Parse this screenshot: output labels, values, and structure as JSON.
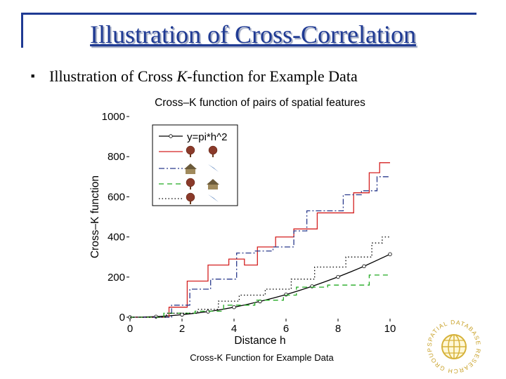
{
  "slide": {
    "title": "Illustration of Cross-Correlation",
    "bullet_icon": "square-bullet",
    "bullet_prefix": "Illustration of Cross ",
    "bullet_italic": "K",
    "bullet_suffix": "-function for Example Data",
    "caption": "Cross-K Function for Example Data",
    "logo_text": "SPATIAL DATABASE RESEARCH GROUP",
    "logo_icon": "globe-icon",
    "accent_color": "#1f3a93"
  },
  "chart_data": {
    "type": "line",
    "title": "Cross–K function of pairs of spatial features",
    "xlabel": "Distance h",
    "ylabel": "Cross–K function",
    "xlim": [
      0,
      10
    ],
    "ylim": [
      0,
      1000
    ],
    "xticks": [
      0,
      2,
      4,
      6,
      8,
      10
    ],
    "yticks": [
      0,
      200,
      400,
      600,
      800,
      1000
    ],
    "legend_position": "top-left",
    "series": [
      {
        "name": "y=pi*h^2",
        "legend_icons": [],
        "color": "#000000",
        "style": "solid-circles",
        "x": [
          0,
          0.5,
          1,
          1.5,
          2,
          2.5,
          3,
          3.5,
          4,
          4.5,
          5,
          5.5,
          6,
          6.5,
          7,
          7.5,
          8,
          8.5,
          9,
          9.5,
          10
        ],
        "values": [
          0,
          1,
          3,
          7,
          13,
          20,
          28,
          38,
          50,
          64,
          79,
          95,
          113,
          133,
          154,
          177,
          201,
          227,
          254,
          284,
          314
        ]
      },
      {
        "name": "",
        "legend_icons": [
          "tree-icon",
          "tree-icon"
        ],
        "color": "#d42020",
        "style": "solid",
        "x": [
          0,
          1.5,
          1.5,
          2.2,
          2.2,
          3,
          3,
          3.8,
          3.8,
          4.4,
          4.4,
          4.9,
          4.9,
          5.6,
          5.6,
          6.3,
          6.3,
          7.2,
          7.2,
          8.6,
          8.6,
          9.2,
          9.2,
          9.6,
          9.6,
          10
        ],
        "values": [
          0,
          0,
          50,
          50,
          180,
          180,
          260,
          260,
          290,
          290,
          260,
          260,
          350,
          350,
          400,
          400,
          440,
          440,
          520,
          520,
          620,
          620,
          720,
          720,
          770,
          770
        ]
      },
      {
        "name": "",
        "legend_icons": [
          "house-icon",
          "bird-icon"
        ],
        "color": "#2a3a8c",
        "style": "dashdot",
        "x": [
          0,
          1.6,
          1.6,
          2.3,
          2.3,
          3.1,
          3.1,
          4.1,
          4.1,
          4.8,
          4.8,
          5.5,
          5.5,
          6.3,
          6.3,
          6.8,
          6.8,
          8.2,
          8.2,
          8.9,
          8.9,
          9.5,
          9.5,
          10
        ],
        "values": [
          0,
          0,
          60,
          60,
          140,
          140,
          190,
          190,
          320,
          320,
          330,
          330,
          350,
          350,
          430,
          430,
          530,
          530,
          610,
          610,
          630,
          630,
          700,
          700
        ]
      },
      {
        "name": "",
        "legend_icons": [
          "tree-icon",
          "house-icon"
        ],
        "color": "#22aa22",
        "style": "dashed",
        "x": [
          0,
          1.3,
          1.3,
          2.5,
          2.5,
          3.6,
          3.6,
          4.8,
          4.8,
          5.9,
          5.9,
          6.4,
          6.4,
          7.6,
          7.6,
          9.2,
          9.2,
          10
        ],
        "values": [
          0,
          0,
          20,
          20,
          30,
          30,
          60,
          60,
          85,
          85,
          110,
          110,
          150,
          150,
          160,
          160,
          210,
          210
        ]
      },
      {
        "name": "",
        "legend_icons": [
          "tree-icon",
          "bird-icon"
        ],
        "color": "#000000",
        "style": "dotted",
        "x": [
          0,
          1.4,
          1.4,
          2.6,
          2.6,
          3.4,
          3.4,
          4.2,
          4.2,
          5.2,
          5.2,
          6.2,
          6.2,
          7.1,
          7.1,
          8.3,
          8.3,
          9.3,
          9.3,
          9.7,
          9.7,
          10
        ],
        "values": [
          0,
          0,
          20,
          20,
          40,
          40,
          80,
          80,
          110,
          110,
          140,
          140,
          190,
          190,
          250,
          250,
          300,
          300,
          370,
          370,
          400,
          400
        ]
      }
    ]
  }
}
